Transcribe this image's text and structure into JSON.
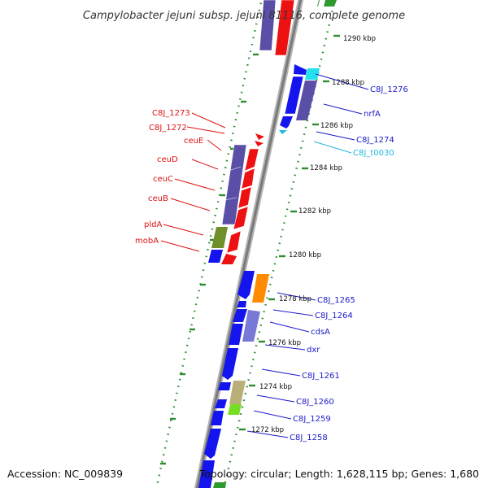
{
  "title": "Campylobacter jejuni subsp. jejuni 81116, complete genome",
  "accession": "Accession: NC_009839",
  "summary": "Topology: circular; Length: 1,628,115 bp; Genes: 1,680",
  "colors": {
    "label_left": "#dd1111",
    "label_right": "#1a1ac8",
    "label_trna": "#22b8e0",
    "ruler_dots": "#2e8b2e",
    "backbone": "#888888"
  },
  "ticks": [
    "1290 kbp",
    "1288 kbp",
    "1286 kbp",
    "1284 kbp",
    "1282 kbp",
    "1280 kbp",
    "1278 kbp",
    "1276 kbp",
    "1274 kbp",
    "1272 kbp"
  ],
  "genes_left": [
    "C8J_1273",
    "C8J_1272",
    "ceuE",
    "ceuD",
    "ceuC",
    "ceuB",
    "pldA",
    "mobA"
  ],
  "genes_right": [
    "C8J_1276",
    "nrfA",
    "C8J_1274",
    "C8J_t0030",
    "C8J_1265",
    "C8J_1264",
    "cdsA",
    "dxr",
    "C8J_1261",
    "C8J_1260",
    "C8J_1259",
    "C8J_1258"
  ]
}
